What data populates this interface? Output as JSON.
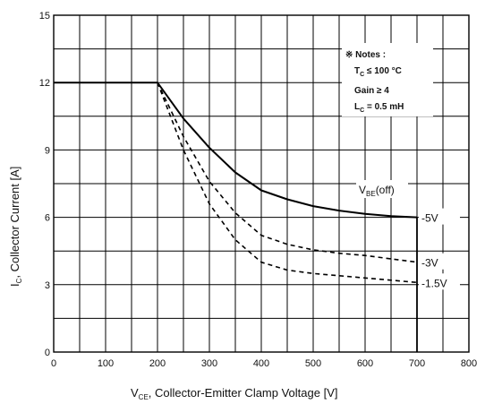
{
  "chart_data": {
    "type": "line",
    "xlabel": {
      "main": "V",
      "sub": "CE",
      "rest": ", Collector-Emitter Clamp Voltage [V]"
    },
    "ylabel": {
      "main": "I",
      "sub": "C",
      "rest": ", Collector Current [A]"
    },
    "xlim": [
      0,
      800
    ],
    "ylim": [
      0,
      15
    ],
    "x_major_ticks": [
      0,
      100,
      200,
      300,
      400,
      500,
      600,
      700,
      800
    ],
    "y_major_ticks": [
      0,
      3,
      6,
      9,
      12,
      15
    ],
    "x_tick_labels": [
      "0",
      "100",
      "200",
      "300",
      "400",
      "500",
      "600",
      "700",
      "800"
    ],
    "y_tick_labels": [
      "0",
      "3",
      "6",
      "9",
      "12",
      "15"
    ],
    "x_grid_step": 50,
    "y_grid_step": 1.5,
    "grid": true,
    "notes": {
      "title": "※ Notes :",
      "tc": {
        "main": "T",
        "sub": "C",
        "rest": " ≤ 100 °C"
      },
      "gain": "Gain  ≥ 4",
      "lc": {
        "main": "L",
        "sub": "C",
        "rest": " = 0.5 mH"
      }
    },
    "legend_title": {
      "main": "V",
      "sub": "BE",
      "rest": "(off)"
    },
    "series": [
      {
        "name": "-5V",
        "style": "solid",
        "x": [
          0,
          200,
          250,
          300,
          350,
          400,
          450,
          500,
          550,
          600,
          650,
          700
        ],
        "y": [
          12,
          12,
          10.4,
          9.1,
          8.0,
          7.2,
          6.8,
          6.5,
          6.3,
          6.15,
          6.05,
          6.0
        ]
      },
      {
        "name": "-3V",
        "style": "dashed",
        "x": [
          200,
          250,
          300,
          350,
          400,
          450,
          500,
          550,
          600,
          650,
          700
        ],
        "y": [
          12,
          9.6,
          7.6,
          6.2,
          5.2,
          4.8,
          4.55,
          4.4,
          4.3,
          4.15,
          4.0
        ]
      },
      {
        "name": "-1.5V",
        "style": "dashed",
        "x": [
          200,
          250,
          300,
          350,
          400,
          450,
          500,
          550,
          600,
          650,
          700
        ],
        "y": [
          12,
          9.0,
          6.6,
          5.0,
          4.0,
          3.65,
          3.5,
          3.4,
          3.3,
          3.2,
          3.1
        ]
      }
    ],
    "clamp_x": 700
  }
}
